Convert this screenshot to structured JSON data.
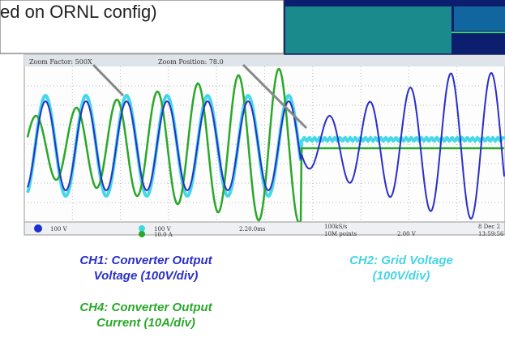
{
  "slide": {
    "note": "ed on ORNL config)",
    "scope": {
      "zoom_factor": "Zoom Factor: 500X",
      "zoom_position": "Zoom Position: 78.0",
      "status": [
        "100 V",
        "100 V",
        "10.0 A",
        "2.20.0ms",
        "100kS/s",
        "10M points",
        "2.00 V",
        "8 Dec 2",
        "13:59:56"
      ]
    },
    "captions": {
      "ch1": [
        "CH1: Converter Output",
        "Voltage (100V/div)"
      ],
      "ch2": [
        "CH2: Grid Voltage",
        "(100V/div)"
      ],
      "ch4": [
        "CH4: Converter Output",
        "Current (10A/div)"
      ]
    }
  }
}
